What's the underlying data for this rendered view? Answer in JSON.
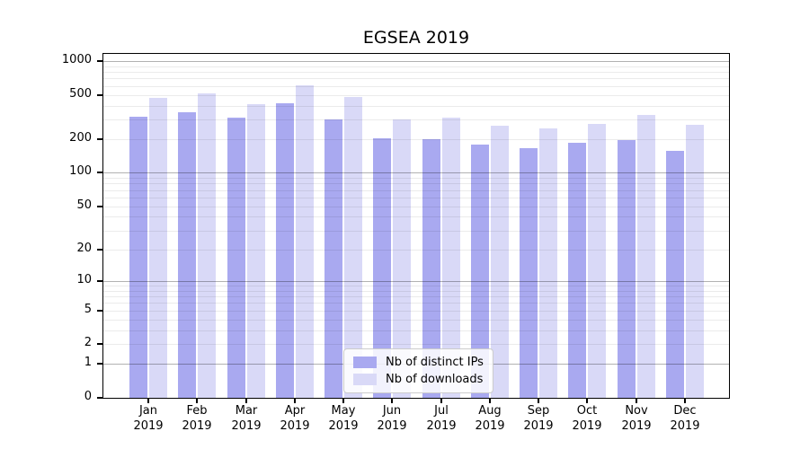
{
  "chart_data": {
    "type": "bar",
    "title": "EGSEA 2019",
    "categories": [
      "Jan 2019",
      "Feb 2019",
      "Mar 2019",
      "Apr 2019",
      "May 2019",
      "Jun 2019",
      "Jul 2019",
      "Aug 2019",
      "Sep 2019",
      "Oct 2019",
      "Nov 2019",
      "Dec 2019"
    ],
    "month_labels": [
      "Jan",
      "Feb",
      "Mar",
      "Apr",
      "May",
      "Jun",
      "Jul",
      "Aug",
      "Sep",
      "Oct",
      "Nov",
      "Dec"
    ],
    "year_label": "2019",
    "series": [
      {
        "key": "distinct-ips",
        "name": "Nb of distinct IPs",
        "color": "#a9a9f0",
        "values": [
          320,
          350,
          310,
          420,
          300,
          205,
          200,
          178,
          165,
          185,
          195,
          158
        ]
      },
      {
        "key": "downloads",
        "name": "Nb of downloads",
        "color": "#d9d9f7",
        "values": [
          470,
          510,
          415,
          610,
          480,
          300,
          310,
          265,
          250,
          272,
          330,
          270
        ]
      }
    ],
    "yscale": "log10(value+1)",
    "ylim": [
      0,
      1000
    ],
    "yticks": [
      1000,
      500,
      200,
      100,
      50,
      20,
      10,
      5,
      2,
      1,
      0
    ],
    "grid": true,
    "legend_position": "lower-center"
  },
  "colors": {
    "bar_ips": "#a9a9f0",
    "bar_downloads": "#d9d9f7",
    "major_grid": "#b3b3b3",
    "minor_grid": "#ececec",
    "axis": "#000000",
    "background": "#ffffff"
  }
}
